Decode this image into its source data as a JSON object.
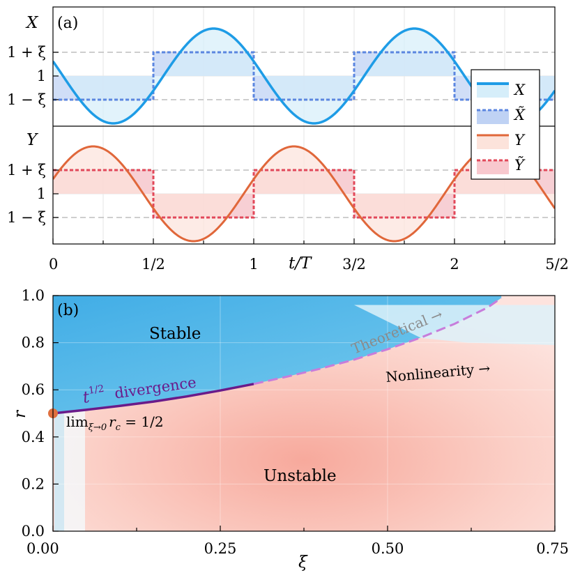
{
  "chart_data": [
    {
      "type": "line",
      "panel": "(a)",
      "xlabel": "t/T",
      "xlim": [
        0,
        2.5
      ],
      "x_tick_labels": [
        "0",
        "1/2",
        "1",
        "3/2",
        "2",
        "5/2"
      ],
      "y_tick_labels": [
        "1 + ξ",
        "1",
        "1 − ξ"
      ],
      "subplots": [
        {
          "ylabel": "X",
          "series": [
            {
              "name": "X",
              "kind": "sine",
              "center": 1,
              "amplitude": 0.2,
              "phase_peak": 0.8,
              "color": "#1E9CE6"
            },
            {
              "name": "X̃",
              "kind": "square",
              "levels": [
                0.9,
                1.1
              ],
              "switch_points": [
                0.5,
                1,
                1.5,
                2,
                2.5
              ],
              "start_level": 0.9,
              "color": "#5B86E0"
            }
          ]
        },
        {
          "ylabel": "Y",
          "series": [
            {
              "name": "Y",
              "kind": "sine",
              "center": 1,
              "amplitude": 0.2,
              "phase_peak": 0.2,
              "color": "#E0673A"
            },
            {
              "name": "Ỹ",
              "kind": "square",
              "levels": [
                0.9,
                1.1
              ],
              "switch_points": [
                0.5,
                1,
                1.5,
                2,
                2.5
              ],
              "start_level": 1.1,
              "color": "#E2485A"
            }
          ]
        }
      ],
      "legend": {
        "placement": "right",
        "entries": [
          "X",
          "X̃",
          "Y",
          "Ỹ"
        ]
      }
    },
    {
      "type": "heatmap",
      "panel": "(b)",
      "xlabel": "ξ",
      "ylabel": "r",
      "xlim": [
        0,
        0.75
      ],
      "ylim": [
        0,
        1.0
      ],
      "x_ticks": [
        0,
        0.25,
        0.5,
        0.75
      ],
      "x_tick_labels": [
        "0.00",
        "0.25",
        "0.50",
        "0.75"
      ],
      "y_ticks": [
        0,
        0.2,
        0.4,
        0.6,
        0.8,
        1.0
      ],
      "y_tick_labels": [
        "0.0",
        "0.2",
        "0.4",
        "0.6",
        "0.8",
        "1.0"
      ],
      "regions": {
        "upper": "Stable",
        "lower": "Unstable"
      },
      "curves": [
        {
          "name": "t^{1/2} divergence",
          "style": "solid",
          "color": "#6A1B8A",
          "x": [
            0,
            0.05,
            0.1,
            0.15,
            0.2,
            0.25,
            0.3
          ],
          "y": [
            0.5,
            0.515,
            0.532,
            0.55,
            0.572,
            0.597,
            0.625
          ]
        },
        {
          "name": "Theoretical",
          "style": "dashed",
          "color": "#C77DDB",
          "x": [
            0.3,
            0.35,
            0.4,
            0.45,
            0.5,
            0.55,
            0.6,
            0.65,
            0.67
          ],
          "y": [
            0.625,
            0.656,
            0.69,
            0.728,
            0.772,
            0.822,
            0.88,
            0.95,
            0.99
          ]
        }
      ],
      "marker": {
        "x": 0,
        "y": 0.5,
        "color": "#E0703F"
      },
      "annotations": {
        "limit": "lim",
        "limit_sub": "ξ→0",
        "limit_expr": "r",
        "limit_expr_sub": "c",
        "limit_value": " = 1/2",
        "divergence_t": "t",
        "divergence_exp": "1/2",
        "divergence_word": "divergence",
        "theoretical": "Theoretical →",
        "nonlinearity": "Nonlinearity →"
      }
    }
  ],
  "colors": {
    "stable": "#5EC0EC",
    "unstable": "#F7B3A8"
  }
}
